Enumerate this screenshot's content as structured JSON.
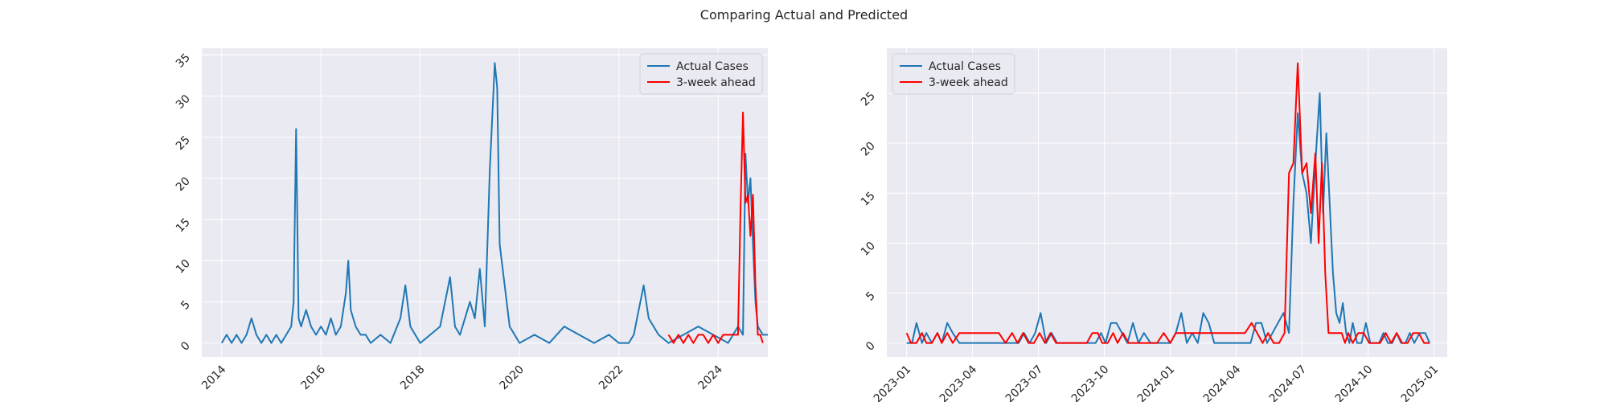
{
  "figure": {
    "suptitle": "Comparing Actual and Predicted"
  },
  "colors": {
    "panel_bg": "#EAEAF2",
    "grid": "#ffffff",
    "actual": "#1f77b4",
    "predicted": "#ff0000",
    "legend_bg": "#EAEAF2"
  },
  "chart_data": [
    {
      "type": "line",
      "title": "",
      "xlabel": "",
      "ylabel": "",
      "x_kind": "year",
      "xlim": [
        2013.6,
        2025.0
      ],
      "ylim": [
        -1.7,
        35.8
      ],
      "grid": true,
      "legend": "top-right",
      "xticks": [
        2014,
        2016,
        2018,
        2020,
        2022,
        2024
      ],
      "xtick_labels": [
        "2014",
        "2016",
        "2018",
        "2020",
        "2022",
        "2024"
      ],
      "yticks": [
        0,
        5,
        10,
        15,
        20,
        25,
        30,
        35
      ],
      "ytick_labels": [
        "0",
        "5",
        "10",
        "15",
        "20",
        "25",
        "30",
        "35"
      ],
      "series": [
        {
          "name": "Actual Cases",
          "color_key": "actual",
          "x": [
            2014.0,
            2014.1,
            2014.2,
            2014.3,
            2014.4,
            2014.5,
            2014.6,
            2014.7,
            2014.8,
            2014.9,
            2015.0,
            2015.1,
            2015.2,
            2015.3,
            2015.4,
            2015.45,
            2015.5,
            2015.55,
            2015.6,
            2015.7,
            2015.8,
            2015.9,
            2016.0,
            2016.1,
            2016.2,
            2016.3,
            2016.4,
            2016.5,
            2016.55,
            2016.6,
            2016.7,
            2016.8,
            2016.9,
            2017.0,
            2017.2,
            2017.4,
            2017.6,
            2017.7,
            2017.8,
            2017.9,
            2018.0,
            2018.2,
            2018.4,
            2018.6,
            2018.7,
            2018.8,
            2018.9,
            2019.0,
            2019.1,
            2019.2,
            2019.3,
            2019.4,
            2019.5,
            2019.55,
            2019.6,
            2019.7,
            2019.8,
            2019.9,
            2020.0,
            2020.3,
            2020.6,
            2020.9,
            2021.2,
            2021.5,
            2021.8,
            2022.0,
            2022.2,
            2022.3,
            2022.4,
            2022.5,
            2022.6,
            2022.8,
            2023.0,
            2023.3,
            2023.6,
            2023.9,
            2024.2,
            2024.4,
            2024.5,
            2024.55,
            2024.6,
            2024.65,
            2024.7,
            2024.75,
            2024.8,
            2024.9,
            2025.0
          ],
          "y": [
            0,
            1,
            0,
            1,
            0,
            1,
            3,
            1,
            0,
            1,
            0,
            1,
            0,
            1,
            2,
            5,
            26,
            3,
            2,
            4,
            2,
            1,
            2,
            1,
            3,
            1,
            2,
            6,
            10,
            4,
            2,
            1,
            1,
            0,
            1,
            0,
            3,
            7,
            2,
            1,
            0,
            1,
            2,
            8,
            2,
            1,
            3,
            5,
            3,
            9,
            2,
            21,
            34,
            31,
            12,
            7,
            2,
            1,
            0,
            1,
            0,
            2,
            1,
            0,
            1,
            0,
            0,
            1,
            4,
            7,
            3,
            1,
            0,
            1,
            2,
            1,
            0,
            2,
            1,
            23,
            17,
            20,
            12,
            5,
            2,
            1,
            1
          ]
        },
        {
          "name": "3-week ahead",
          "color_key": "predicted",
          "x": [
            2023.0,
            2023.1,
            2023.2,
            2023.3,
            2023.4,
            2023.5,
            2023.6,
            2023.7,
            2023.8,
            2023.9,
            2024.0,
            2024.1,
            2024.2,
            2024.3,
            2024.4,
            2024.45,
            2024.5,
            2024.55,
            2024.6,
            2024.65,
            2024.7,
            2024.75,
            2024.8,
            2024.85,
            2024.9
          ],
          "y": [
            1,
            0,
            1,
            0,
            1,
            0,
            1,
            1,
            0,
            1,
            0,
            1,
            1,
            1,
            1,
            16,
            28,
            17,
            18,
            13,
            18,
            7,
            1,
            1,
            0
          ]
        }
      ]
    },
    {
      "type": "line",
      "title": "",
      "xlabel": "",
      "ylabel": "",
      "x_kind": "month",
      "xlim": [
        -0.9,
        24.6
      ],
      "ylim": [
        -1.4,
        29.5
      ],
      "grid": true,
      "legend": "top-left",
      "xticks": [
        0,
        3,
        6,
        9,
        12,
        15,
        18,
        21,
        24
      ],
      "xtick_labels": [
        "2023-01",
        "2023-04",
        "2023-07",
        "2023-10",
        "2024-01",
        "2024-04",
        "2024-07",
        "2024-10",
        "2025-01"
      ],
      "yticks": [
        0,
        5,
        10,
        15,
        20,
        25
      ],
      "ytick_labels": [
        "0",
        "5",
        "10",
        "15",
        "20",
        "25"
      ],
      "series": [
        {
          "name": "Actual Cases",
          "color_key": "actual",
          "x": [
            0,
            0.25,
            0.45,
            0.7,
            0.9,
            1.15,
            1.4,
            1.6,
            1.85,
            2.1,
            2.4,
            2.7,
            3.0,
            3.3,
            3.6,
            3.9,
            4.2,
            4.5,
            4.8,
            5.1,
            5.35,
            5.6,
            5.85,
            6.1,
            6.35,
            6.6,
            6.85,
            7.1,
            7.4,
            7.7,
            8.0,
            8.3,
            8.6,
            8.85,
            9.05,
            9.3,
            9.55,
            9.8,
            10.05,
            10.3,
            10.55,
            10.8,
            11.1,
            11.4,
            11.7,
            12.0,
            12.25,
            12.5,
            12.75,
            13.0,
            13.25,
            13.5,
            13.75,
            14.0,
            14.3,
            14.6,
            14.9,
            15.15,
            15.4,
            15.65,
            15.9,
            16.15,
            16.4,
            16.65,
            16.9,
            17.15,
            17.4,
            17.6,
            17.8,
            18.0,
            18.2,
            18.4,
            18.6,
            18.8,
            18.95,
            19.1,
            19.25,
            19.4,
            19.55,
            19.7,
            19.85,
            20.0,
            20.15,
            20.3,
            20.5,
            20.7,
            20.9,
            21.1,
            21.3,
            21.5,
            21.7,
            21.9,
            22.1,
            22.3,
            22.5,
            22.7,
            22.9,
            23.1,
            23.35,
            23.6,
            23.8
          ],
          "y": [
            0,
            0,
            2,
            0,
            1,
            0,
            1,
            0,
            2,
            1,
            0,
            0,
            0,
            0,
            0,
            0,
            0,
            0,
            0,
            0,
            1,
            0,
            1,
            3,
            0,
            1,
            0,
            0,
            0,
            0,
            0,
            0,
            0,
            1,
            0,
            2,
            2,
            1,
            0,
            2,
            0,
            1,
            0,
            0,
            0,
            0,
            1,
            3,
            0,
            1,
            0,
            3,
            2,
            0,
            0,
            0,
            0,
            0,
            0,
            0,
            2,
            2,
            0,
            1,
            2,
            3,
            1,
            14,
            23,
            17,
            15,
            10,
            18,
            25,
            13,
            21,
            14,
            7,
            3,
            2,
            4,
            1,
            0,
            2,
            0,
            0,
            2,
            0,
            0,
            0,
            1,
            0,
            0,
            1,
            0,
            0,
            1,
            0,
            1,
            1,
            0
          ]
        },
        {
          "name": "3-week ahead",
          "color_key": "predicted",
          "x": [
            0,
            0.2,
            0.45,
            0.7,
            0.9,
            1.15,
            1.4,
            1.6,
            1.85,
            2.1,
            2.4,
            2.7,
            3.0,
            3.3,
            3.6,
            3.9,
            4.2,
            4.5,
            4.8,
            5.05,
            5.3,
            5.55,
            5.8,
            6.05,
            6.3,
            6.55,
            6.8,
            7.05,
            7.3,
            7.6,
            7.9,
            8.2,
            8.45,
            8.7,
            8.9,
            9.15,
            9.4,
            9.6,
            9.85,
            10.1,
            10.35,
            10.6,
            10.85,
            11.1,
            11.4,
            11.7,
            12.0,
            12.25,
            12.5,
            12.75,
            13.0,
            13.3,
            13.6,
            13.9,
            14.2,
            14.5,
            14.8,
            15.1,
            15.4,
            15.7,
            15.95,
            16.2,
            16.45,
            16.7,
            16.95,
            17.2,
            17.4,
            17.6,
            17.8,
            18.0,
            18.2,
            18.4,
            18.6,
            18.75,
            18.9,
            19.05,
            19.2,
            19.35,
            19.5,
            19.65,
            19.8,
            19.95,
            20.1,
            20.3,
            20.55,
            20.8,
            21.05,
            21.3,
            21.55,
            21.8,
            22.05,
            22.3,
            22.55,
            22.8,
            23.05,
            23.3,
            23.55,
            23.8
          ],
          "y": [
            1,
            0,
            0,
            1,
            0,
            0,
            1,
            0,
            1,
            0,
            1,
            1,
            1,
            1,
            1,
            1,
            1,
            0,
            1,
            0,
            1,
            0,
            0,
            1,
            0,
            1,
            0,
            0,
            0,
            0,
            0,
            0,
            1,
            1,
            0,
            0,
            1,
            0,
            1,
            0,
            0,
            0,
            0,
            0,
            0,
            1,
            0,
            1,
            1,
            1,
            1,
            1,
            1,
            1,
            1,
            1,
            1,
            1,
            1,
            2,
            1,
            0,
            1,
            0,
            0,
            1,
            17,
            18,
            28,
            17,
            18,
            13,
            19,
            10,
            18,
            7,
            1,
            1,
            1,
            1,
            1,
            0,
            1,
            0,
            1,
            1,
            0,
            0,
            0,
            1,
            0,
            1,
            0,
            0,
            1,
            1,
            0,
            0
          ]
        }
      ]
    }
  ]
}
